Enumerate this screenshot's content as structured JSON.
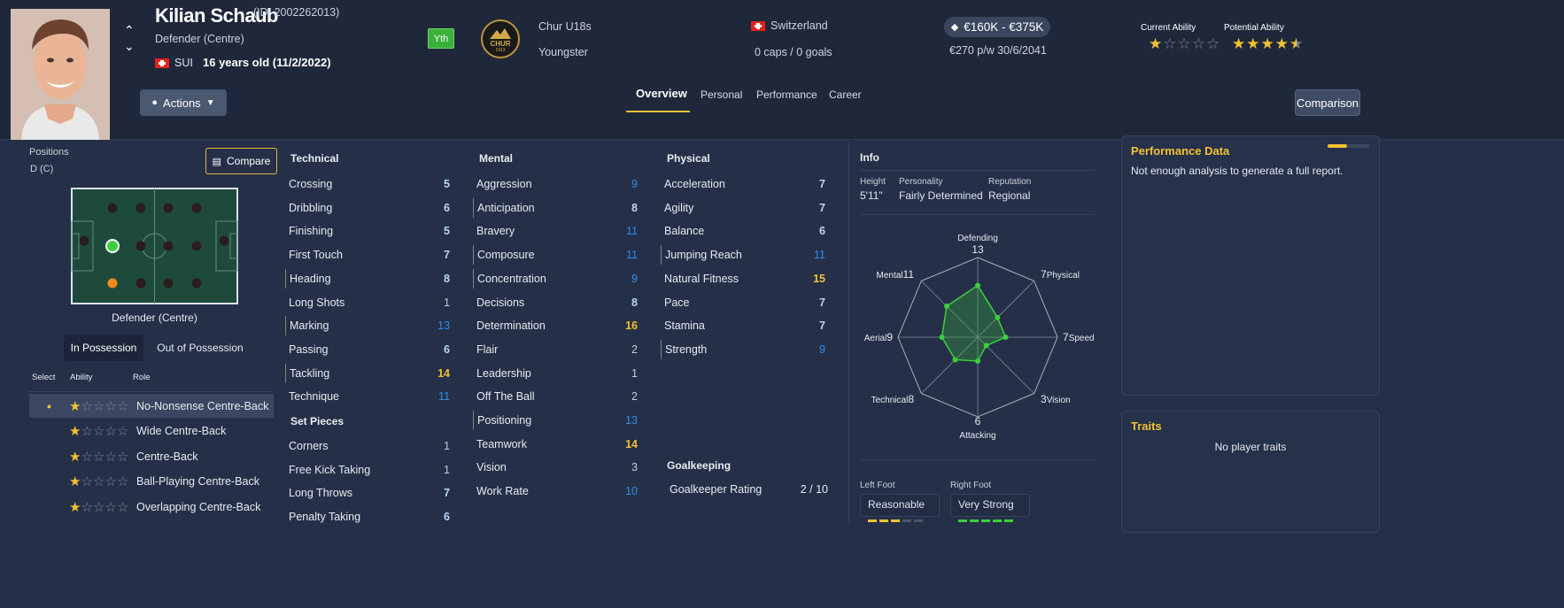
{
  "player": {
    "name": "Kilian Schaub",
    "id_text": "(ID: 2002262013)",
    "position": "Defender (Centre)",
    "nation_code": "SUI",
    "age_text": "16 years old (11/2/2022)",
    "badge": "Yth",
    "club": "Chur U18s",
    "status": "Youngster",
    "club_crest_text": "CHUR",
    "club_crest_year": "1913",
    "country": "Switzerland",
    "caps": "0 caps / 0 goals",
    "value": "€160K - €375K",
    "wage": "€270 p/w 30/6/2041",
    "current_ability_label": "Current Ability",
    "potential_ability_label": "Potential Ability",
    "current_ability_stars": 1,
    "potential_ability_stars": 4.5
  },
  "header": {
    "actions_label": "Actions",
    "comparison_label": "Comparison",
    "tabs": [
      "Overview",
      "Personal",
      "Performance",
      "Career"
    ],
    "active_tab": "Overview"
  },
  "positions": {
    "label": "Positions",
    "value": "D (C)",
    "compare_label": "Compare",
    "pitch_caption": "Defender (Centre)",
    "toggle": [
      "In Possession",
      "Out of Possession"
    ],
    "table_headers": [
      "Select",
      "Ability",
      "Role"
    ],
    "roles": [
      {
        "name": "No-Nonsense Centre-Back",
        "stars": 1,
        "selected": true
      },
      {
        "name": "Wide Centre-Back",
        "stars": 1,
        "selected": false
      },
      {
        "name": "Centre-Back",
        "stars": 1,
        "selected": false
      },
      {
        "name": "Ball-Playing Centre-Back",
        "stars": 1,
        "selected": false
      },
      {
        "name": "Overlapping Centre-Back",
        "stars": 1,
        "selected": false
      }
    ]
  },
  "technical": {
    "title": "Technical",
    "attrs": [
      {
        "name": "Crossing",
        "value": "5"
      },
      {
        "name": "Dribbling",
        "value": "6"
      },
      {
        "name": "Finishing",
        "value": "5"
      },
      {
        "name": "First Touch",
        "value": "7"
      },
      {
        "name": "Heading",
        "value": "8"
      },
      {
        "name": "Long Shots",
        "value": "1"
      },
      {
        "name": "Marking",
        "value": "13"
      },
      {
        "name": "Passing",
        "value": "6"
      },
      {
        "name": "Tackling",
        "value": "14"
      },
      {
        "name": "Technique",
        "value": "11"
      }
    ]
  },
  "set_pieces": {
    "title": "Set Pieces",
    "attrs": [
      {
        "name": "Corners",
        "value": "1"
      },
      {
        "name": "Free Kick Taking",
        "value": "1"
      },
      {
        "name": "Long Throws",
        "value": "7"
      },
      {
        "name": "Penalty Taking",
        "value": "6"
      }
    ]
  },
  "mental": {
    "title": "Mental",
    "attrs": [
      {
        "name": "Aggression",
        "value": "9"
      },
      {
        "name": "Anticipation",
        "value": "8"
      },
      {
        "name": "Bravery",
        "value": "11"
      },
      {
        "name": "Composure",
        "value": "11"
      },
      {
        "name": "Concentration",
        "value": "9"
      },
      {
        "name": "Decisions",
        "value": "8"
      },
      {
        "name": "Determination",
        "value": "16"
      },
      {
        "name": "Flair",
        "value": "2"
      },
      {
        "name": "Leadership",
        "value": "1"
      },
      {
        "name": "Off The Ball",
        "value": "2"
      },
      {
        "name": "Positioning",
        "value": "13"
      },
      {
        "name": "Teamwork",
        "value": "14"
      },
      {
        "name": "Vision",
        "value": "3"
      },
      {
        "name": "Work Rate",
        "value": "10"
      }
    ]
  },
  "physical": {
    "title": "Physical",
    "attrs": [
      {
        "name": "Acceleration",
        "value": "7"
      },
      {
        "name": "Agility",
        "value": "7"
      },
      {
        "name": "Balance",
        "value": "6"
      },
      {
        "name": "Jumping Reach",
        "value": "11"
      },
      {
        "name": "Natural Fitness",
        "value": "15"
      },
      {
        "name": "Pace",
        "value": "7"
      },
      {
        "name": "Stamina",
        "value": "7"
      },
      {
        "name": "Strength",
        "value": "9"
      }
    ]
  },
  "goalkeeping": {
    "title": "Goalkeeping",
    "rating_label": "Goalkeeper Rating",
    "rating_value": "2 / 10"
  },
  "info": {
    "title": "Info",
    "height_label": "Height",
    "height": "5'11\"",
    "personality_label": "Personality",
    "personality": "Fairly Determined",
    "reputation_label": "Reputation",
    "reputation": "Regional",
    "left_foot_label": "Left Foot",
    "left_foot": "Reasonable",
    "left_foot_level": 3,
    "right_foot_label": "Right Foot",
    "right_foot": "Very Strong",
    "right_foot_level": 5
  },
  "radar": {
    "axes": [
      {
        "name": "Defending",
        "value": "13"
      },
      {
        "name": "Physical",
        "value": "7"
      },
      {
        "name": "Speed",
        "value": "7"
      },
      {
        "name": "Vision",
        "value": "3"
      },
      {
        "name": "Attacking",
        "value": "6"
      },
      {
        "name": "Technical",
        "value": "8"
      },
      {
        "name": "Aerial",
        "value": "9"
      },
      {
        "name": "Mental",
        "value": "11"
      }
    ],
    "max": 20
  },
  "performance": {
    "title": "Performance Data",
    "text": "Not enough analysis to generate a full report."
  },
  "traits": {
    "title": "Traits",
    "text": "No player traits"
  },
  "colors": {
    "accent_gold": "#f2c232",
    "accent_blue": "#2e8dee",
    "badge_green": "#3bb13b",
    "pitch": "#1e4a3c"
  }
}
